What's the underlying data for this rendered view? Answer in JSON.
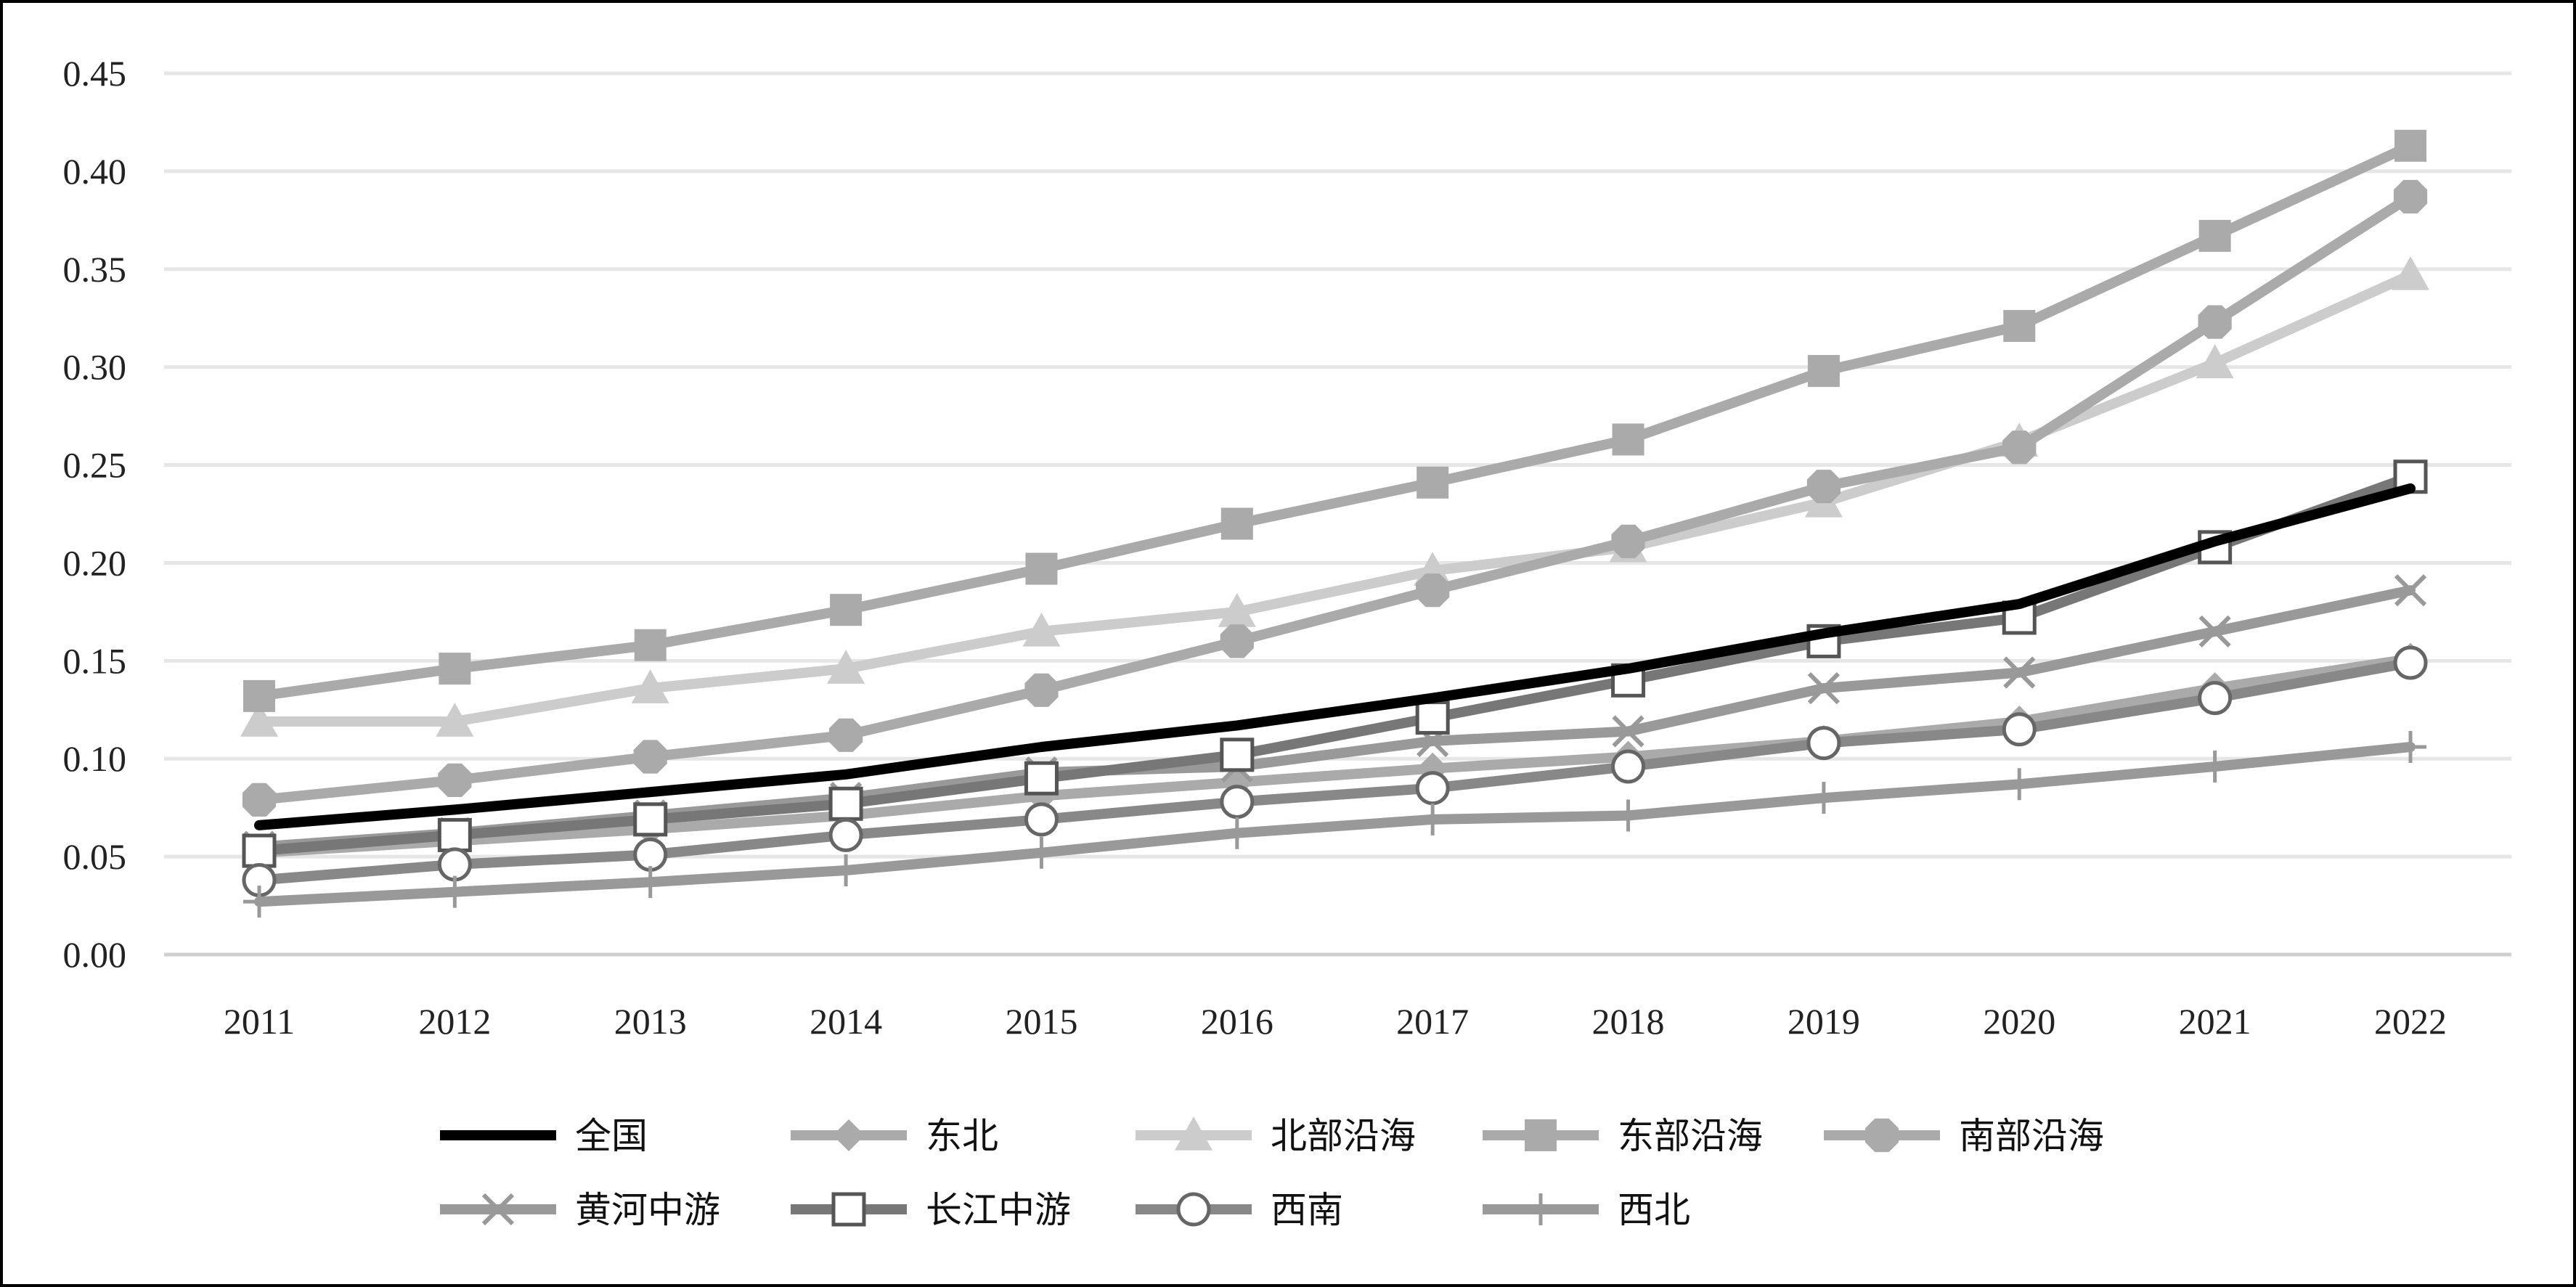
{
  "chart_data": {
    "type": "line",
    "title": "",
    "xlabel": "",
    "ylabel": "",
    "categories": [
      "2011",
      "2012",
      "2013",
      "2014",
      "2015",
      "2016",
      "2017",
      "2018",
      "2019",
      "2020",
      "2021",
      "2022"
    ],
    "ylim": [
      0,
      0.45
    ],
    "yticks": [
      "0.00",
      "0.05",
      "0.10",
      "0.15",
      "0.20",
      "0.25",
      "0.30",
      "0.35",
      "0.40",
      "0.45"
    ],
    "grid": true,
    "legend_position": "bottom",
    "series": [
      {
        "name": "全国",
        "color": "#000000",
        "marker": "none",
        "values": [
          0.066,
          0.074,
          0.083,
          0.092,
          0.106,
          0.117,
          0.131,
          0.146,
          0.164,
          0.179,
          0.211,
          0.238
        ]
      },
      {
        "name": "东北",
        "color": "#aaaaaa",
        "marker": "diamond",
        "values": [
          0.052,
          0.058,
          0.064,
          0.071,
          0.081,
          0.088,
          0.095,
          0.101,
          0.109,
          0.119,
          0.136,
          0.151
        ]
      },
      {
        "name": "北部沿海",
        "color": "#cccccc",
        "marker": "triangle",
        "values": [
          0.119,
          0.119,
          0.136,
          0.146,
          0.165,
          0.175,
          0.196,
          0.208,
          0.231,
          0.262,
          0.302,
          0.347
        ]
      },
      {
        "name": "东部沿海",
        "color": "#aaaaaa",
        "marker": "square",
        "values": [
          0.132,
          0.146,
          0.158,
          0.176,
          0.197,
          0.22,
          0.241,
          0.263,
          0.298,
          0.321,
          0.367,
          0.413
        ]
      },
      {
        "name": "南部沿海",
        "color": "#aaaaaa",
        "marker": "octagon",
        "values": [
          0.079,
          0.089,
          0.101,
          0.112,
          0.135,
          0.16,
          0.186,
          0.211,
          0.239,
          0.259,
          0.323,
          0.387
        ]
      },
      {
        "name": "黄河中游",
        "color": "#999999",
        "marker": "x",
        "values": [
          0.055,
          0.062,
          0.071,
          0.08,
          0.093,
          0.096,
          0.109,
          0.114,
          0.136,
          0.144,
          0.165,
          0.186
        ]
      },
      {
        "name": "长江中游",
        "color": "#777777",
        "marker": "square-open",
        "values": [
          0.053,
          0.061,
          0.069,
          0.077,
          0.09,
          0.102,
          0.121,
          0.14,
          0.16,
          0.172,
          0.208,
          0.244
        ]
      },
      {
        "name": "西南",
        "color": "#888888",
        "marker": "circle-open",
        "values": [
          0.038,
          0.046,
          0.051,
          0.061,
          0.069,
          0.078,
          0.085,
          0.096,
          0.108,
          0.115,
          0.131,
          0.149
        ]
      },
      {
        "name": "西北",
        "color": "#999999",
        "marker": "plus",
        "values": [
          0.027,
          0.032,
          0.037,
          0.043,
          0.052,
          0.062,
          0.069,
          0.071,
          0.08,
          0.087,
          0.096,
          0.106
        ]
      }
    ]
  }
}
